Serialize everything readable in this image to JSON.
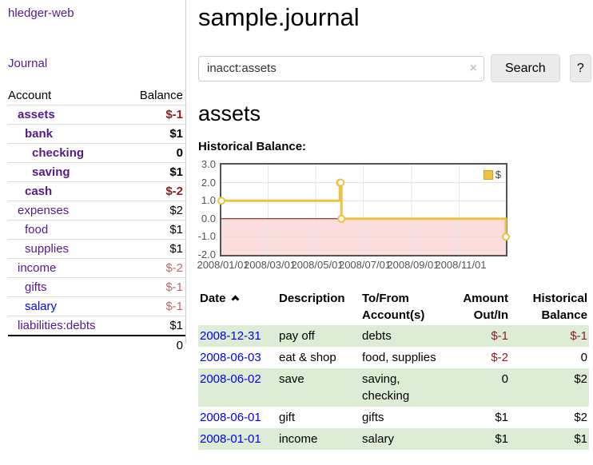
{
  "palette": {
    "link_visited_purple": "#551a8b",
    "link_blue": "#0000ee",
    "negative_strong": "#8b2020",
    "negative_muted": "#b96b6b",
    "row_stripe_green": "#ddecd5",
    "series_gold": "#edc240",
    "negative_region_pink": "#fbdddd",
    "zero_line_red": "#8b0000"
  },
  "topbar": {
    "brand": "hledger-web"
  },
  "sidebar": {
    "journal_link": "Journal",
    "columns": {
      "account": "Account",
      "balance": "Balance"
    },
    "accounts": [
      {
        "name": "assets",
        "balance": "$-1"
      },
      {
        "name": "bank",
        "balance": "$1"
      },
      {
        "name": "checking",
        "balance": "0"
      },
      {
        "name": "saving",
        "balance": "$1"
      },
      {
        "name": "cash",
        "balance": "$-2"
      },
      {
        "name": "expenses",
        "balance": "$2"
      },
      {
        "name": "food",
        "balance": "$1"
      },
      {
        "name": "supplies",
        "balance": "$1"
      },
      {
        "name": "income",
        "balance": "$-2"
      },
      {
        "name": "gifts",
        "balance": "$-1"
      },
      {
        "name": "salary",
        "balance": "$-1"
      },
      {
        "name": "liabilities:debts",
        "balance": "$1"
      }
    ],
    "total": "0"
  },
  "main": {
    "title": "sample.journal",
    "search": {
      "value": "inacct:assets",
      "clear_icon": "×",
      "search_button": "Search",
      "help_button": "?"
    },
    "account_heading": "assets",
    "chart_title": "Historical Balance:"
  },
  "chart_data": {
    "type": "line",
    "step": true,
    "title": "Historical Balance",
    "series": [
      {
        "name": "$",
        "color": "#edc240",
        "points": [
          [
            "2008-01-01",
            1
          ],
          [
            "2008-06-01",
            2
          ],
          [
            "2008-06-02",
            2
          ],
          [
            "2008-06-03",
            0
          ],
          [
            "2008-12-31",
            -1
          ]
        ]
      }
    ],
    "x_range": [
      "2008-01-01",
      "2008-12-31"
    ],
    "x_ticks": [
      "2008/01/01",
      "2008/03/01",
      "2008/05/01",
      "2008/07/01",
      "2008/09/01",
      "2008/11/01"
    ],
    "y_ticks": [
      "3.0",
      "2.0",
      "1.0",
      "0.0",
      "-1.0",
      "-2.0"
    ],
    "ylim": [
      -2,
      3
    ],
    "grid": true,
    "legend": {
      "label": "$",
      "position": "top-right"
    },
    "negative_region_color": "#fbdddd",
    "zero_line_color": "#8b0000"
  },
  "register": {
    "headers": [
      "Date",
      "Description",
      "To/From Account(s)",
      "Amount Out/In",
      "Historical Balance"
    ],
    "rows": [
      {
        "date": "2008-12-31",
        "description": "pay off",
        "accounts": "debts",
        "amount": "$-1",
        "balance": "$-1"
      },
      {
        "date": "2008-06-03",
        "description": "eat & shop",
        "accounts": "food, supplies",
        "amount": "$-2",
        "balance": "0"
      },
      {
        "date": "2008-06-02",
        "description": "save",
        "accounts": "saving, checking",
        "amount": "0",
        "balance": "$2"
      },
      {
        "date": "2008-06-01",
        "description": "gift",
        "accounts": "gifts",
        "amount": "$1",
        "balance": "$2"
      },
      {
        "date": "2008-01-01",
        "description": "income",
        "accounts": "salary",
        "amount": "$1",
        "balance": "$1"
      }
    ]
  }
}
